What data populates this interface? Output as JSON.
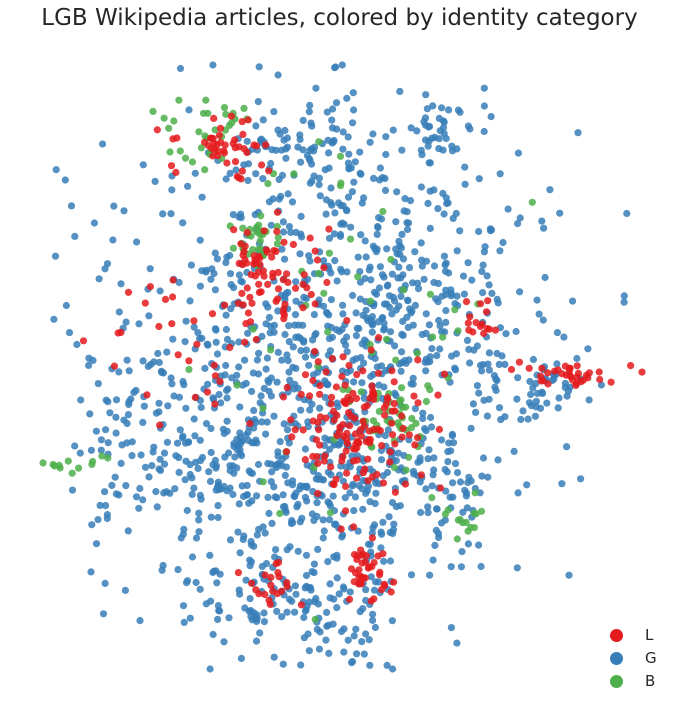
{
  "title": "LGB Wikipedia articles, colored by identity category",
  "chart_data": {
    "type": "scatter",
    "title": "LGB Wikipedia articles, colored by identity category",
    "xlabel": "",
    "ylabel": "",
    "xlim": [
      0,
      100
    ],
    "ylim": [
      0,
      100
    ],
    "axes_visible": false,
    "grid": false,
    "legend_position": "bottom-right",
    "series": [
      {
        "name": "L",
        "color": "#e41a1c"
      },
      {
        "name": "G",
        "color": "#377eb8"
      },
      {
        "name": "B",
        "color": "#4daf4a"
      }
    ],
    "clusters": [
      {
        "series": "G",
        "x": 47,
        "y": 52,
        "spread": [
          17,
          18
        ],
        "n": 780
      },
      {
        "series": "G",
        "x": 33,
        "y": 36,
        "spread": [
          10,
          10
        ],
        "n": 160
      },
      {
        "series": "G",
        "x": 57,
        "y": 28,
        "spread": [
          7,
          8
        ],
        "n": 90
      },
      {
        "series": "G",
        "x": 64,
        "y": 64,
        "spread": [
          9,
          8
        ],
        "n": 100
      },
      {
        "series": "G",
        "x": 46,
        "y": 85,
        "spread": [
          6,
          5
        ],
        "n": 80
      },
      {
        "series": "G",
        "x": 66,
        "y": 89,
        "spread": [
          4,
          3
        ],
        "n": 40
      },
      {
        "series": "G",
        "x": 34,
        "y": 14,
        "spread": [
          6,
          6
        ],
        "n": 70
      },
      {
        "series": "G",
        "x": 47,
        "y": 10,
        "spread": [
          5,
          6
        ],
        "n": 80
      },
      {
        "series": "G",
        "x": 17,
        "y": 38,
        "spread": [
          7,
          8
        ],
        "n": 60
      },
      {
        "series": "G",
        "x": 84,
        "y": 46,
        "spread": [
          5,
          3
        ],
        "n": 45
      },
      {
        "series": "G",
        "x": 69,
        "y": 30,
        "spread": [
          2,
          3
        ],
        "n": 18
      },
      {
        "series": "G",
        "x": 12,
        "y": 48,
        "spread": [
          5,
          10
        ],
        "n": 24
      },
      {
        "series": "L",
        "x": 38,
        "y": 66,
        "spread": [
          4,
          4
        ],
        "n": 70
      },
      {
        "series": "L",
        "x": 30,
        "y": 85,
        "spread": [
          4,
          3
        ],
        "n": 45
      },
      {
        "series": "L",
        "x": 52,
        "y": 41,
        "spread": [
          6,
          6
        ],
        "n": 150
      },
      {
        "series": "L",
        "x": 88,
        "y": 49,
        "spread": [
          4,
          1
        ],
        "n": 35
      },
      {
        "series": "L",
        "x": 54,
        "y": 16,
        "spread": [
          2,
          3
        ],
        "n": 38
      },
      {
        "series": "L",
        "x": 38,
        "y": 15,
        "spread": [
          2,
          2
        ],
        "n": 20
      },
      {
        "series": "L",
        "x": 73,
        "y": 57,
        "spread": [
          2,
          2
        ],
        "n": 15
      },
      {
        "series": "L",
        "x": 22,
        "y": 54,
        "spread": [
          8,
          8
        ],
        "n": 30
      },
      {
        "series": "B",
        "x": 28,
        "y": 88,
        "spread": [
          4,
          4
        ],
        "n": 30
      },
      {
        "series": "B",
        "x": 36,
        "y": 71,
        "spread": [
          2,
          2
        ],
        "n": 30
      },
      {
        "series": "B",
        "x": 59,
        "y": 41,
        "spread": [
          3,
          3
        ],
        "n": 40
      },
      {
        "series": "B",
        "x": 6,
        "y": 34,
        "spread": [
          3,
          1
        ],
        "n": 12
      },
      {
        "series": "B",
        "x": 71,
        "y": 25,
        "spread": [
          3,
          2
        ],
        "n": 15
      },
      {
        "series": "B",
        "x": 50,
        "y": 55,
        "spread": [
          15,
          15
        ],
        "n": 50
      }
    ]
  }
}
